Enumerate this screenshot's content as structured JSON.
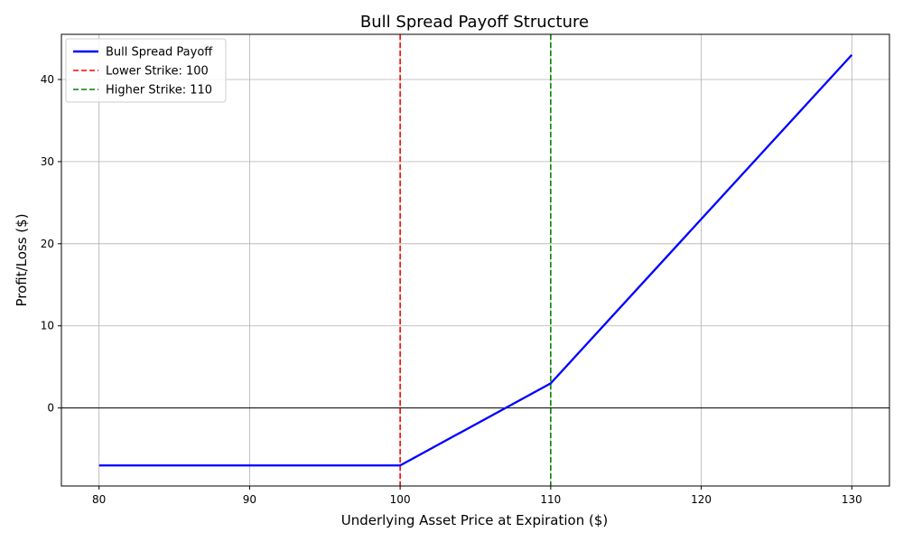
{
  "chart_data": {
    "type": "line",
    "title": "Bull Spread Payoff Structure",
    "xlabel": "Underlying Asset Price at Expiration ($)",
    "ylabel": "Profit/Loss ($)",
    "xlim": [
      77.5,
      132.5
    ],
    "ylim": [
      -9.5,
      45.5
    ],
    "xticks": [
      80,
      90,
      100,
      110,
      120,
      130
    ],
    "yticks": [
      0,
      10,
      20,
      30,
      40
    ],
    "grid": true,
    "legend_position": "top-left",
    "zero_line": 0,
    "series": [
      {
        "name": "Bull Spread Payoff",
        "color": "#0000ff",
        "style": "solid",
        "x": [
          80,
          100,
          110,
          130
        ],
        "y": [
          -7,
          -7,
          3,
          43
        ]
      }
    ],
    "vlines": [
      {
        "name": "Lower Strike: 100",
        "x": 100,
        "color": "#ff0000",
        "style": "dashed"
      },
      {
        "name": "Higher Strike: 110",
        "x": 110,
        "color": "#008000",
        "style": "dashed"
      }
    ]
  }
}
